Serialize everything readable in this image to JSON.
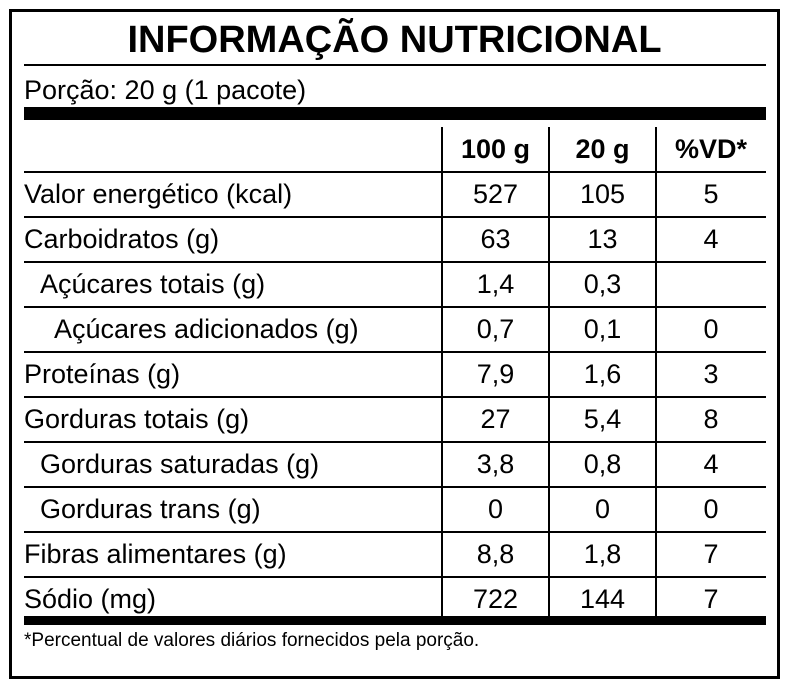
{
  "header": {
    "title": "INFORMAÇÃO NUTRICIONAL",
    "portion": "Porção: 20 g (1 pacote)"
  },
  "table": {
    "columns": [
      "100 g",
      "20 g",
      "%VD*"
    ],
    "rows": [
      [
        "Valor energético (kcal)",
        527,
        105,
        5
      ],
      [
        "Carboidratos (g)",
        63,
        13,
        4
      ],
      [
        "Açúcares totais (g)",
        "1,4",
        "0,3",
        null
      ],
      [
        "Açúcares adicionados (g)",
        "0,7",
        "0,1",
        0
      ],
      [
        "Proteínas (g)",
        "7,9",
        "1,6",
        3
      ],
      [
        "Gorduras totais (g)",
        27,
        "5,4",
        8
      ],
      [
        "Gorduras saturadas (g)",
        "3,8",
        "0,8",
        4
      ],
      [
        "Gorduras trans (g)",
        0,
        0,
        0
      ],
      [
        "Fibras alimentares (g)",
        "8,8",
        "1,8",
        7
      ],
      [
        "Sódio (mg)",
        722,
        144,
        7
      ]
    ]
  },
  "footnote": "*Percentual de valores diários fornecidos pela porção."
}
